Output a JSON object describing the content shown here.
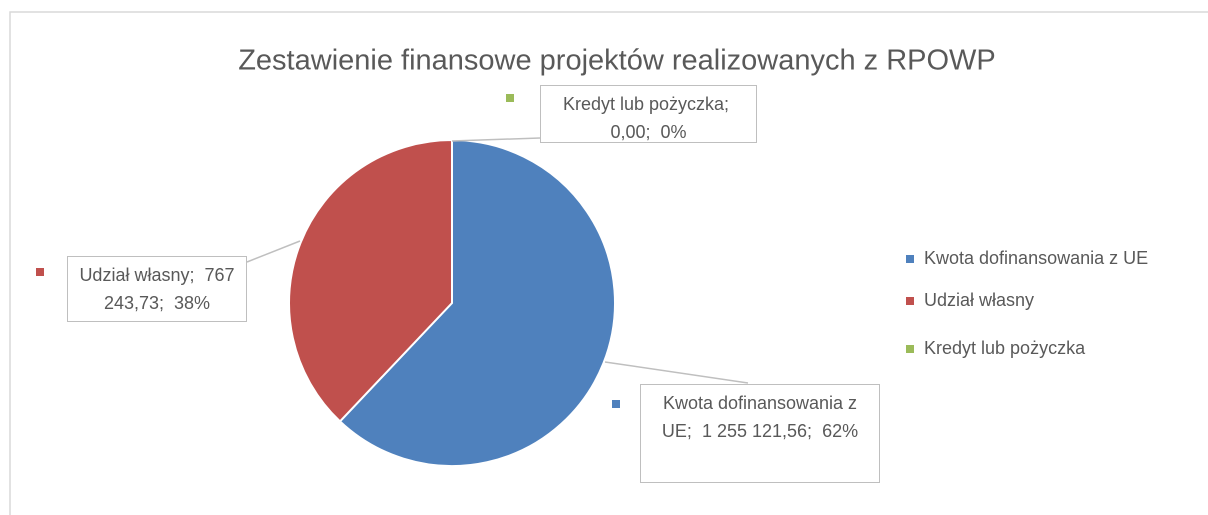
{
  "chart_data": {
    "type": "pie",
    "title": "Zestawienie finansowe projektów realizowanych z RPOWP",
    "categories": [
      "Kwota dofinansowania z UE",
      "Udział własny",
      "Kredyt lub pożyczka"
    ],
    "values": [
      1255121.56,
      767243.73,
      0
    ],
    "value_labels": [
      "1 255 121,56",
      "767 243,73",
      "0,00"
    ],
    "percents": [
      62,
      38,
      0
    ],
    "percent_labels": [
      "62%",
      "38%",
      "0%"
    ],
    "label_separator": ";",
    "colors": [
      "#4f81bd",
      "#c0504d",
      "#9bbb59"
    ],
    "legend": "right"
  }
}
